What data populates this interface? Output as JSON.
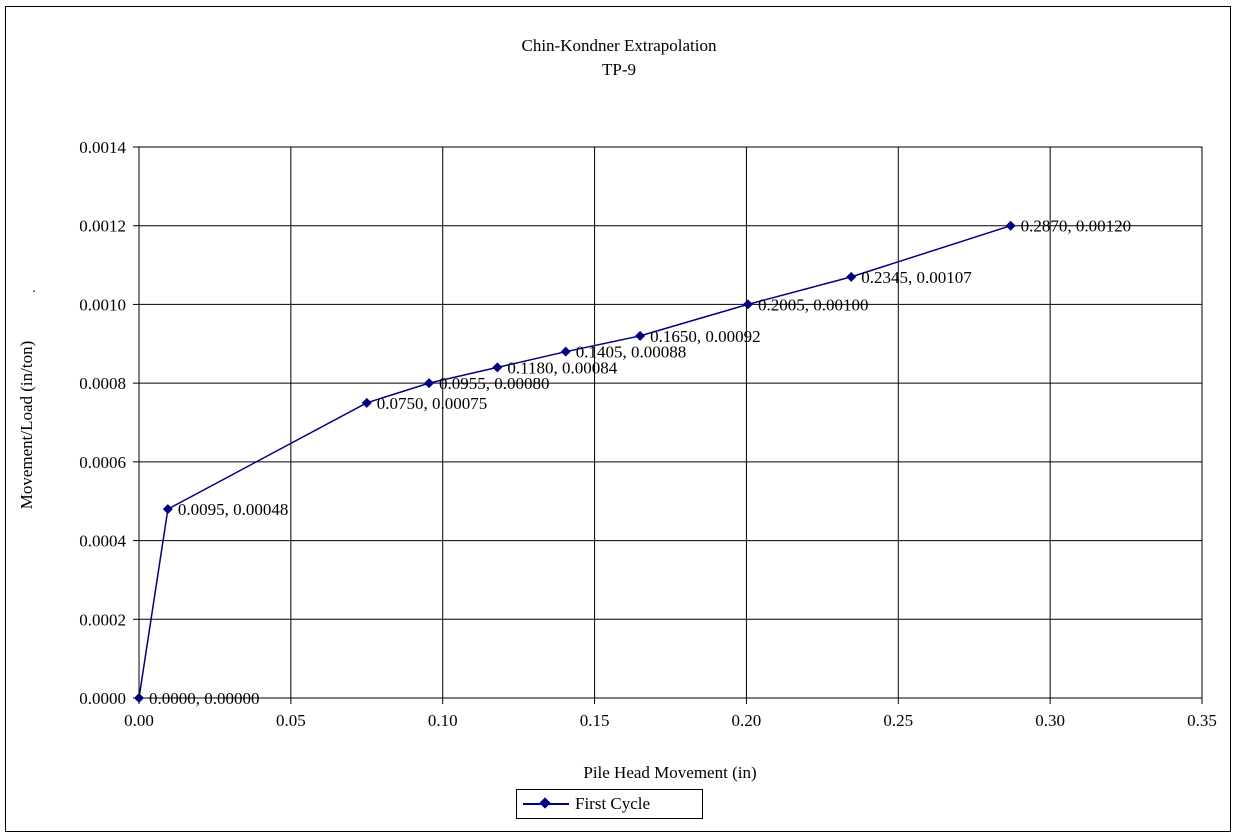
{
  "chart_data": {
    "type": "scatter",
    "title": "Chin-Kondner Extrapolation",
    "subtitle": "TP-9",
    "xlabel": "Pile Head Movement (in)",
    "ylabel": "Movement/Load  (in/ton)",
    "stray_mark": ".",
    "xlim": [
      0,
      0.35
    ],
    "ylim": [
      0,
      0.0014
    ],
    "x_ticks": [
      "0.00",
      "0.05",
      "0.10",
      "0.15",
      "0.20",
      "0.25",
      "0.30",
      "0.35"
    ],
    "y_ticks": [
      "0.0000",
      "0.0002",
      "0.0004",
      "0.0006",
      "0.0008",
      "0.0010",
      "0.0012",
      "0.0014"
    ],
    "grid": true,
    "legend_position": "bottom",
    "series": [
      {
        "name": "First Cycle",
        "color": "#000080",
        "marker": "diamond",
        "x": [
          0.0,
          0.0095,
          0.075,
          0.0955,
          0.118,
          0.1405,
          0.165,
          0.2005,
          0.2345,
          0.287
        ],
        "y": [
          0.0,
          0.00048,
          0.00075,
          0.0008,
          0.00084,
          0.00088,
          0.00092,
          0.001,
          0.00107,
          0.0012
        ],
        "labels": [
          "0.0000, 0.00000",
          "0.0095, 0.00048",
          "0.0750, 0.00075",
          "0.0955, 0.00080",
          "0.1180, 0.00084",
          "0.1405, 0.00088",
          "0.1650, 0.00092",
          "0.2005, 0.00100",
          "0.2345, 0.00107",
          "0.2870, 0.00120"
        ]
      }
    ]
  }
}
